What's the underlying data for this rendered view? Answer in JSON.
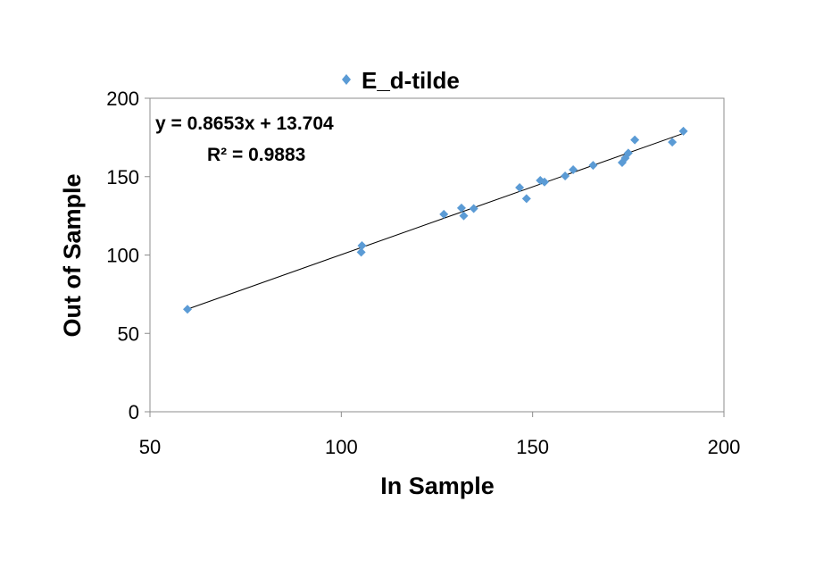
{
  "chart_data": {
    "type": "scatter",
    "title": "",
    "xlabel": "In Sample",
    "ylabel": "Out of Sample",
    "xlim": [
      50,
      200
    ],
    "ylim": [
      0,
      200
    ],
    "xticks": [
      50,
      100,
      150,
      200
    ],
    "yticks": [
      0,
      50,
      100,
      150,
      200
    ],
    "grid": false,
    "legend_position": "top-center",
    "series": [
      {
        "name": "E_d-tilde",
        "color": "#5b9bd5",
        "marker": "diamond",
        "x": [
          59.8,
          105.2,
          105.4,
          126.8,
          131.4,
          132.0,
          134.6,
          146.6,
          148.4,
          152.0,
          153.1,
          158.5,
          160.6,
          165.8,
          173.4,
          174.2,
          175.0,
          176.7,
          186.5,
          189.4
        ],
        "y": [
          65.4,
          101.8,
          106.0,
          126.0,
          130.0,
          125.0,
          129.6,
          143.0,
          136.0,
          147.6,
          146.6,
          150.4,
          154.4,
          157.2,
          159.0,
          161.8,
          165.0,
          173.4,
          172.0,
          179.0
        ]
      }
    ],
    "trendline": {
      "slope": 0.8653,
      "intercept": 13.704,
      "x_range": [
        59.8,
        189.4
      ],
      "color": "#000000",
      "equation_label": "y = 0.8653x + 13.704",
      "r2_label": "R² = 0.9883"
    }
  }
}
